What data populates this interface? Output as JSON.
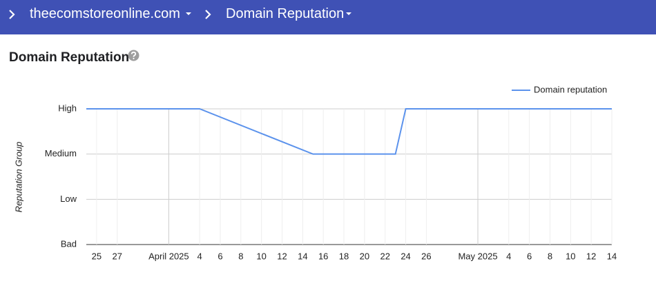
{
  "header": {
    "breadcrumbs": [
      "theecomstoreonline.com",
      "Domain Reputation"
    ]
  },
  "page_title": "Domain Reputation",
  "chart_data": {
    "type": "line",
    "y_label": "Reputation Group",
    "y_categories": [
      "Bad",
      "Low",
      "Medium",
      "High"
    ],
    "x": [
      "2025-03-24",
      "2025-04-04",
      "2025-04-15",
      "2025-04-23",
      "2025-04-24",
      "2025-05-14"
    ],
    "series": [
      {
        "name": "Domain reputation",
        "color": "#5b92ec",
        "values": [
          "High",
          "High",
          "Medium",
          "Medium",
          "High",
          "High"
        ]
      }
    ],
    "xlim": [
      "2025-03-24",
      "2025-05-14"
    ],
    "xticks": [
      {
        "value": "2025-03-25",
        "label": "25"
      },
      {
        "value": "2025-03-27",
        "label": "27"
      },
      {
        "value": "2025-04-01",
        "label": "April 2025"
      },
      {
        "value": "2025-04-04",
        "label": "4"
      },
      {
        "value": "2025-04-06",
        "label": "6"
      },
      {
        "value": "2025-04-08",
        "label": "8"
      },
      {
        "value": "2025-04-10",
        "label": "10"
      },
      {
        "value": "2025-04-12",
        "label": "12"
      },
      {
        "value": "2025-04-14",
        "label": "14"
      },
      {
        "value": "2025-04-16",
        "label": "16"
      },
      {
        "value": "2025-04-18",
        "label": "18"
      },
      {
        "value": "2025-04-20",
        "label": "20"
      },
      {
        "value": "2025-04-22",
        "label": "22"
      },
      {
        "value": "2025-04-24",
        "label": "24"
      },
      {
        "value": "2025-04-26",
        "label": "26"
      },
      {
        "value": "2025-05-01",
        "label": "May 2025"
      },
      {
        "value": "2025-05-04",
        "label": "4"
      },
      {
        "value": "2025-05-06",
        "label": "6"
      },
      {
        "value": "2025-05-08",
        "label": "8"
      },
      {
        "value": "2025-05-10",
        "label": "10"
      },
      {
        "value": "2025-05-12",
        "label": "12"
      },
      {
        "value": "2025-05-14",
        "label": "14"
      }
    ],
    "grid": true,
    "legend": "top-right"
  }
}
